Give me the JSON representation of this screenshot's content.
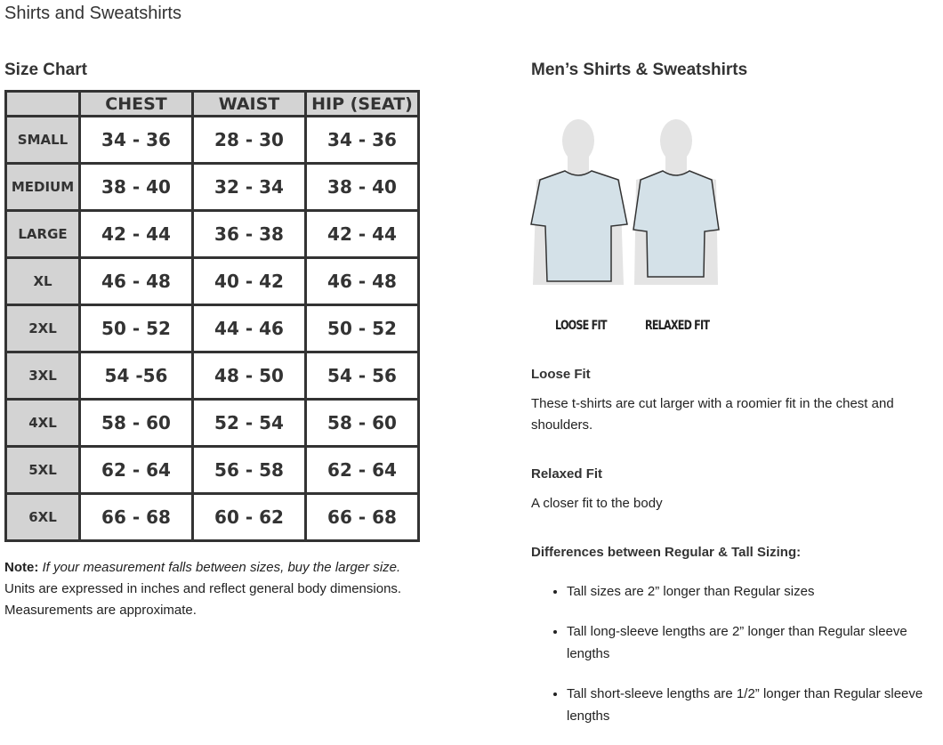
{
  "page_title": "Shirts and Sweatshirts",
  "size_chart": {
    "title": "Size Chart",
    "headers": [
      "",
      "CHEST",
      "WAIST",
      "HIP (SEAT)"
    ],
    "rows": [
      [
        "SMALL",
        "34 - 36",
        "28 - 30",
        "34 - 36"
      ],
      [
        "MEDIUM",
        "38 - 40",
        "32 - 34",
        "38 - 40"
      ],
      [
        "LARGE",
        "42 - 44",
        "36 - 38",
        "42 - 44"
      ],
      [
        "XL",
        "46 - 48",
        "40 - 42",
        "46 - 48"
      ],
      [
        "2XL",
        "50 - 52",
        "44 - 46",
        "50 - 52"
      ],
      [
        "3XL",
        "54 -56",
        "48 - 50",
        "54 - 56"
      ],
      [
        "4XL",
        "58 - 60",
        "52 - 54",
        "58 - 60"
      ],
      [
        "5XL",
        "62 - 64",
        "56 - 58",
        "62 - 64"
      ],
      [
        "6XL",
        "66 - 68",
        "60 - 62",
        "66 - 68"
      ]
    ],
    "header_bg": "#d3d3d3"
  },
  "note": {
    "label": "Note:",
    "italic": " If your measurement falls between sizes, buy the larger size.",
    "line2": "Units are expressed in inches and reflect general body dimensions.",
    "line3": "Measurements are approximate."
  },
  "right": {
    "title": "Men’s Shirts & Sweatshirts",
    "fit_labels": [
      "LOOSE FIT",
      "RELAXED FIT"
    ],
    "loose_title": "Loose Fit",
    "loose_text": "These t-shirts are cut larger with a roomier fit in the chest and shoulders.",
    "relaxed_title": "Relaxed Fit",
    "relaxed_text": "A closer fit to the body",
    "diff_title": "Differences between Regular & Tall Sizing:",
    "bullets": [
      "Tall sizes are 2” longer than Regular sizes",
      "Tall long-sleeve lengths are 2” longer than Regular sleeve lengths",
      "Tall short-sleeve lengths are 1/2” longer than Regular sleeve lengths"
    ],
    "shirt_color": "#d4e1e8"
  }
}
